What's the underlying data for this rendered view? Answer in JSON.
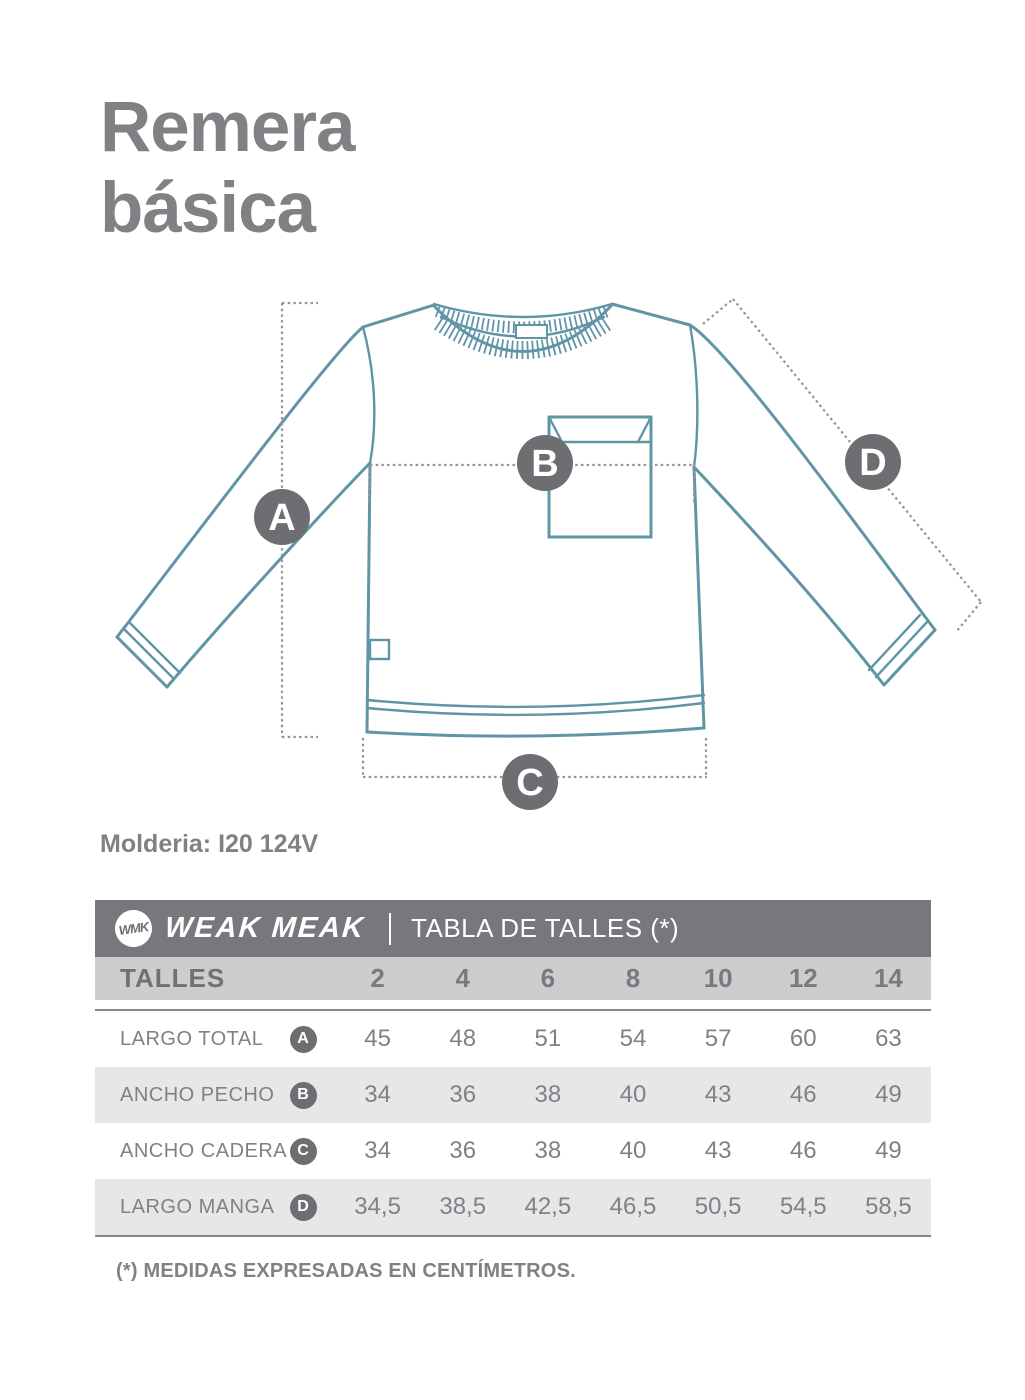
{
  "page": {
    "title_lines": [
      "Remera",
      "básica"
    ],
    "pattern_ref": "Molderia: I20 124V",
    "footnote": "(*) MEDIDAS EXPRESADAS EN CENTÍMETROS."
  },
  "colors": {
    "garment_outline": "#6095a6",
    "marker_bg": "#6d6e71",
    "dotted_line": "#939598",
    "text_gray": "#808184",
    "header_bar_bg": "#77787b",
    "sizes_row_bg": "#cccdce",
    "alt_row_bg": "#e6e7e8"
  },
  "diagram": {
    "markers": [
      {
        "letter": "A"
      },
      {
        "letter": "B"
      },
      {
        "letter": "C"
      },
      {
        "letter": "D"
      }
    ]
  },
  "size_table": {
    "brand_monogram": "WMK",
    "brand_name": "WEAK MEAK",
    "caption": "TABLA DE TALLES (*)",
    "sizes_label": "TALLES",
    "sizes": [
      "2",
      "4",
      "6",
      "8",
      "10",
      "12",
      "14"
    ],
    "rows": [
      {
        "label": "LARGO TOTAL",
        "letter": "A",
        "values": [
          "45",
          "48",
          "51",
          "54",
          "57",
          "60",
          "63"
        ]
      },
      {
        "label": "ANCHO PECHO",
        "letter": "B",
        "values": [
          "34",
          "36",
          "38",
          "40",
          "43",
          "46",
          "49"
        ]
      },
      {
        "label": "ANCHO CADERA",
        "letter": "C",
        "values": [
          "34",
          "36",
          "38",
          "40",
          "43",
          "46",
          "49"
        ]
      },
      {
        "label": "LARGO MANGA",
        "letter": "D",
        "values": [
          "34,5",
          "38,5",
          "42,5",
          "46,5",
          "50,5",
          "54,5",
          "58,5"
        ]
      }
    ]
  }
}
